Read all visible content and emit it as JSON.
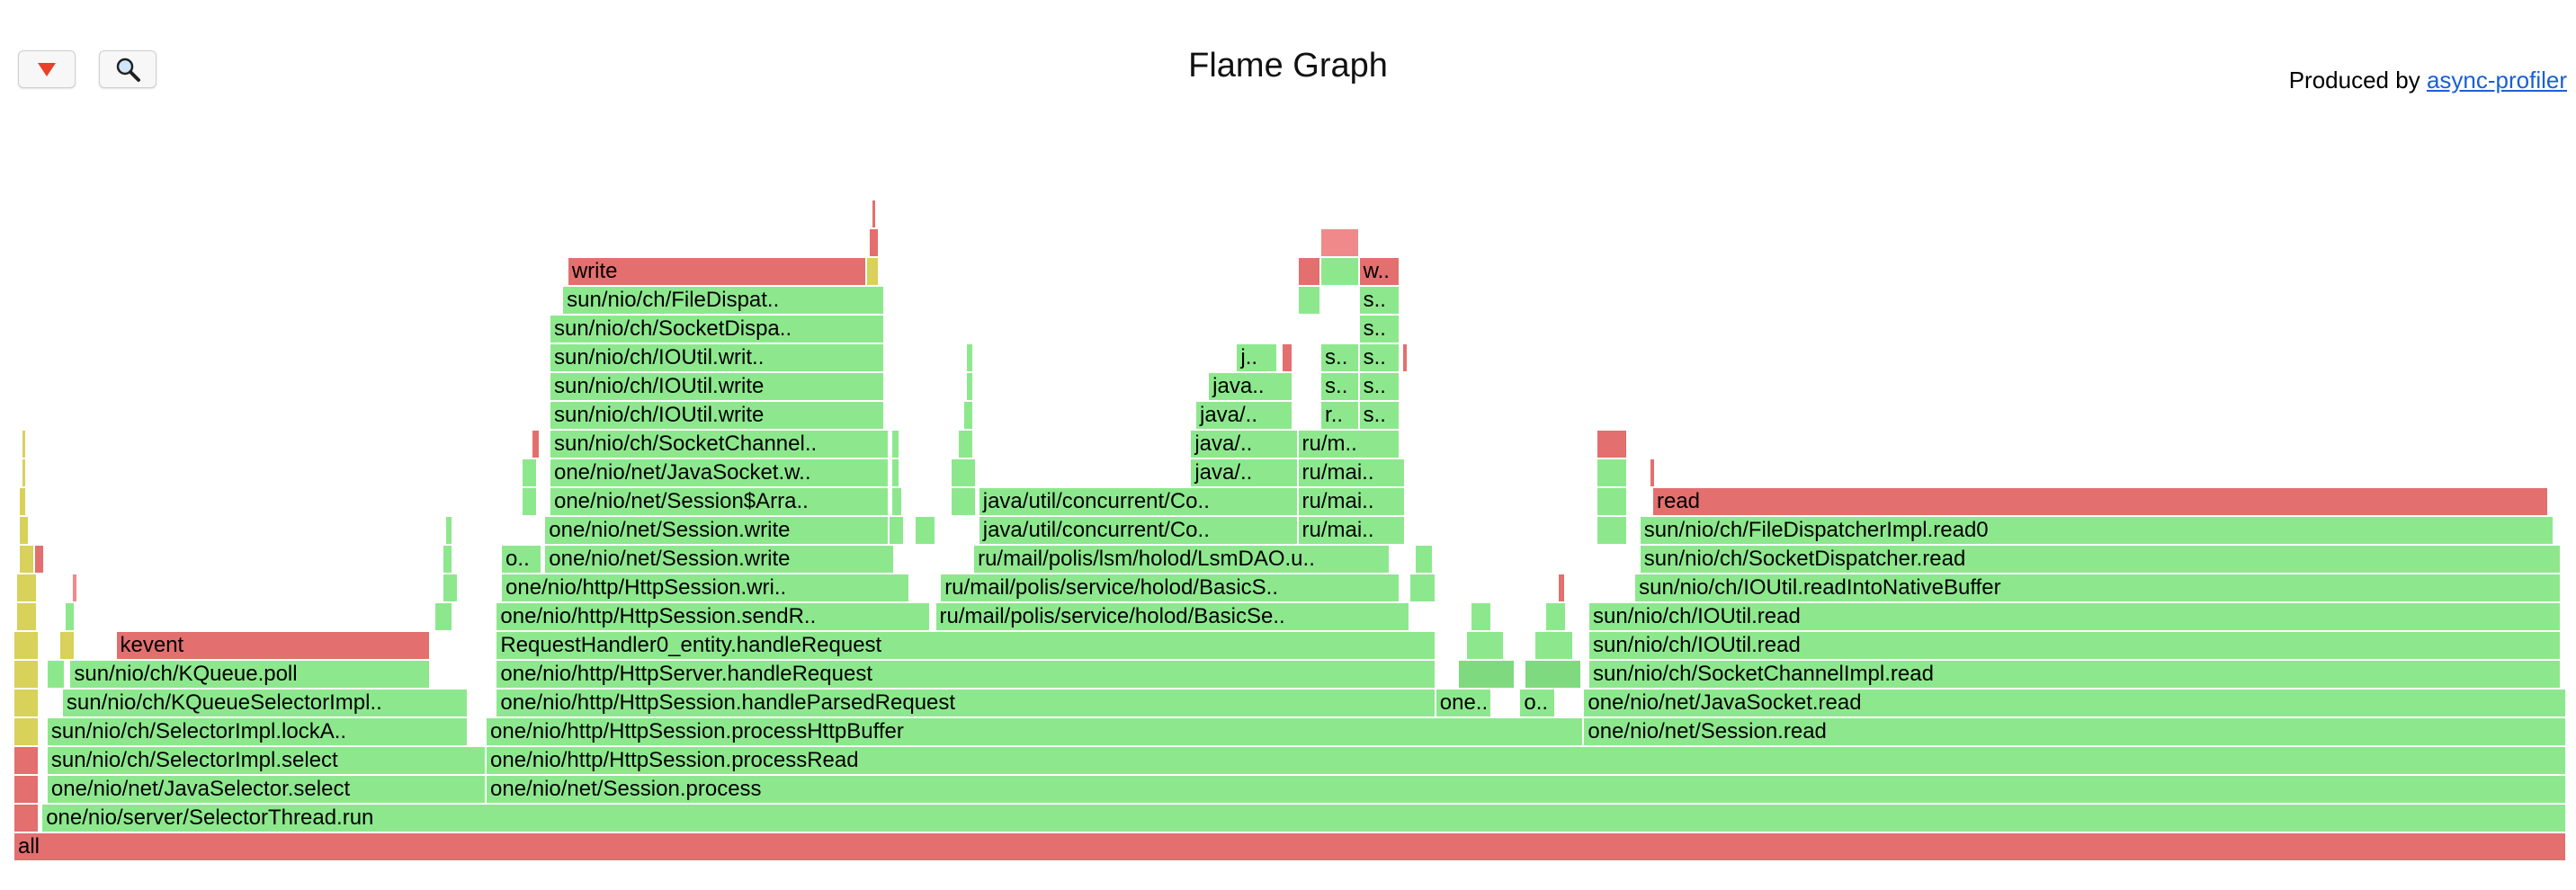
{
  "toolbar": {
    "reverse_icon": "red-triangle-down-icon",
    "search_icon": "magnifier-icon"
  },
  "header": {
    "title": "Flame Graph",
    "produced_by": "Produced by",
    "profiler_link": "async-profiler"
  },
  "colors": {
    "red": "#e36f6f",
    "green": "#8de88d",
    "green_dark": "#7fd97f",
    "yellow": "#d8d15a",
    "pink": "#f08a8a"
  },
  "frames": [
    {
      "label": "all",
      "level": 0,
      "start": 0.0,
      "width": 1.0,
      "color": "red"
    },
    {
      "label": "one/nio/server/SelectorThread.run",
      "level": 1,
      "start": 0.011,
      "width": 0.989,
      "color": "green"
    },
    {
      "label": "one/nio/net/JavaSelector.select",
      "level": 2,
      "start": 0.013,
      "width": 0.172,
      "color": "green"
    },
    {
      "label": "sun/nio/ch/SelectorImpl.select",
      "level": 3,
      "start": 0.013,
      "width": 0.172,
      "color": "green"
    },
    {
      "label": "sun/nio/ch/SelectorImpl.lockA..",
      "level": 4,
      "start": 0.013,
      "width": 0.165,
      "color": "green"
    },
    {
      "label": "sun/nio/ch/KQueueSelectorImpl..",
      "level": 5,
      "start": 0.019,
      "width": 0.159,
      "color": "green"
    },
    {
      "label": "sun/nio/ch/KQueue.poll",
      "level": 6,
      "start": 0.022,
      "width": 0.141,
      "color": "green"
    },
    {
      "label": "kevent",
      "level": 7,
      "start": 0.04,
      "width": 0.123,
      "color": "red"
    },
    {
      "label": "one/nio/net/Session.process",
      "level": 2,
      "start": 0.185,
      "width": 0.815,
      "color": "green"
    },
    {
      "label": "one/nio/http/HttpSession.processRead",
      "level": 3,
      "start": 0.185,
      "width": 0.815,
      "color": "green"
    },
    {
      "label": "one/nio/http/HttpSession.processHttpBuffer",
      "level": 4,
      "start": 0.185,
      "width": 0.43,
      "color": "green"
    },
    {
      "label": "one/nio/http/HttpSession.handleParsedRequest",
      "level": 5,
      "start": 0.189,
      "width": 0.368,
      "color": "green"
    },
    {
      "label": "one/nio/http/HttpServer.handleRequest",
      "level": 6,
      "start": 0.189,
      "width": 0.368,
      "color": "green"
    },
    {
      "label": "RequestHandler0_entity.handleRequest",
      "level": 7,
      "start": 0.189,
      "width": 0.368,
      "color": "green"
    },
    {
      "label": "one/nio/http/HttpSession.sendR..",
      "level": 8,
      "start": 0.189,
      "width": 0.17,
      "color": "green"
    },
    {
      "label": "one/nio/http/HttpSession.wri..",
      "level": 9,
      "start": 0.191,
      "width": 0.16,
      "color": "green"
    },
    {
      "label": "o..",
      "level": 10,
      "start": 0.191,
      "width": 0.016,
      "color": "green"
    },
    {
      "label": "one/nio/net/Session.write",
      "level": 10,
      "start": 0.208,
      "width": 0.137,
      "color": "green"
    },
    {
      "label": "one/nio/net/Session.write",
      "level": 11,
      "start": 0.208,
      "width": 0.135,
      "color": "green"
    },
    {
      "label": "one/nio/net/Session$Arra..",
      "level": 12,
      "start": 0.21,
      "width": 0.133,
      "color": "green"
    },
    {
      "label": "one/nio/net/JavaSocket.w..",
      "level": 13,
      "start": 0.21,
      "width": 0.133,
      "color": "green"
    },
    {
      "label": "sun/nio/ch/SocketChannel..",
      "level": 14,
      "start": 0.21,
      "width": 0.133,
      "color": "green"
    },
    {
      "label": "sun/nio/ch/IOUtil.write",
      "level": 15,
      "start": 0.21,
      "width": 0.131,
      "color": "green"
    },
    {
      "label": "sun/nio/ch/IOUtil.write",
      "level": 16,
      "start": 0.21,
      "width": 0.131,
      "color": "green"
    },
    {
      "label": "sun/nio/ch/IOUtil.writ..",
      "level": 17,
      "start": 0.21,
      "width": 0.131,
      "color": "green"
    },
    {
      "label": "sun/nio/ch/SocketDispa..",
      "level": 18,
      "start": 0.21,
      "width": 0.131,
      "color": "green"
    },
    {
      "label": "sun/nio/ch/FileDispat..",
      "level": 19,
      "start": 0.215,
      "width": 0.126,
      "color": "green"
    },
    {
      "label": "write",
      "level": 20,
      "start": 0.217,
      "width": 0.117,
      "color": "red"
    },
    {
      "label": "ru/mail/polis/service/holod/BasicSe..",
      "level": 8,
      "start": 0.361,
      "width": 0.186,
      "color": "green"
    },
    {
      "label": "ru/mail/polis/service/holod/BasicS..",
      "level": 9,
      "start": 0.363,
      "width": 0.18,
      "color": "green"
    },
    {
      "label": "ru/mail/polis/lsm/holod/LsmDAO.u..",
      "level": 10,
      "start": 0.376,
      "width": 0.163,
      "color": "green"
    },
    {
      "label": "java/util/concurrent/Co..",
      "level": 11,
      "start": 0.378,
      "width": 0.125,
      "color": "green"
    },
    {
      "label": "java/util/concurrent/Co..",
      "level": 12,
      "start": 0.378,
      "width": 0.125,
      "color": "green"
    },
    {
      "label": "java/..",
      "level": 13,
      "start": 0.461,
      "width": 0.042,
      "color": "green"
    },
    {
      "label": "java/..",
      "level": 14,
      "start": 0.461,
      "width": 0.042,
      "color": "green"
    },
    {
      "label": "java/..",
      "level": 15,
      "start": 0.463,
      "width": 0.038,
      "color": "green"
    },
    {
      "label": "java..",
      "level": 16,
      "start": 0.468,
      "width": 0.033,
      "color": "green"
    },
    {
      "label": "j..",
      "level": 17,
      "start": 0.479,
      "width": 0.016,
      "color": "green"
    },
    {
      "label": "ru/mai..",
      "level": 12,
      "start": 0.503,
      "width": 0.042,
      "color": "green"
    },
    {
      "label": "ru/mai..",
      "level": 13,
      "start": 0.503,
      "width": 0.042,
      "color": "green"
    },
    {
      "label": "ru/mai..",
      "level": 11,
      "start": 0.503,
      "width": 0.042,
      "color": "green"
    },
    {
      "label": "ru/m..",
      "level": 14,
      "start": 0.503,
      "width": 0.04,
      "color": "green"
    },
    {
      "label": "r..",
      "level": 15,
      "start": 0.512,
      "width": 0.015,
      "color": "green"
    },
    {
      "label": "s..",
      "level": 16,
      "start": 0.512,
      "width": 0.015,
      "color": "green"
    },
    {
      "label": "s..",
      "level": 17,
      "start": 0.512,
      "width": 0.015,
      "color": "green"
    },
    {
      "label": "s..",
      "level": 15,
      "start": 0.527,
      "width": 0.016,
      "color": "green"
    },
    {
      "label": "s..",
      "level": 16,
      "start": 0.527,
      "width": 0.016,
      "color": "green"
    },
    {
      "label": "s..",
      "level": 17,
      "start": 0.527,
      "width": 0.016,
      "color": "green"
    },
    {
      "label": "s..",
      "level": 18,
      "start": 0.527,
      "width": 0.016,
      "color": "green"
    },
    {
      "label": "s..",
      "level": 19,
      "start": 0.527,
      "width": 0.016,
      "color": "green"
    },
    {
      "label": "w..",
      "level": 20,
      "start": 0.527,
      "width": 0.016,
      "color": "red"
    },
    {
      "label": "one..",
      "level": 5,
      "start": 0.557,
      "width": 0.022,
      "color": "green"
    },
    {
      "label": "o..",
      "level": 5,
      "start": 0.59,
      "width": 0.014,
      "color": "green"
    },
    {
      "label": "one/nio/net/Session.read",
      "level": 4,
      "start": 0.615,
      "width": 0.385,
      "color": "green"
    },
    {
      "label": "one/nio/net/JavaSocket.read",
      "level": 5,
      "start": 0.615,
      "width": 0.385,
      "color": "green"
    },
    {
      "label": "sun/nio/ch/SocketChannelImpl.read",
      "level": 6,
      "start": 0.617,
      "width": 0.381,
      "color": "green"
    },
    {
      "label": "sun/nio/ch/IOUtil.read",
      "level": 7,
      "start": 0.617,
      "width": 0.381,
      "color": "green"
    },
    {
      "label": "sun/nio/ch/IOUtil.read",
      "level": 8,
      "start": 0.617,
      "width": 0.381,
      "color": "green"
    },
    {
      "label": "sun/nio/ch/IOUtil.readIntoNativeBuffer",
      "level": 9,
      "start": 0.635,
      "width": 0.363,
      "color": "green"
    },
    {
      "label": "sun/nio/ch/SocketDispatcher.read",
      "level": 10,
      "start": 0.637,
      "width": 0.361,
      "color": "green"
    },
    {
      "label": "sun/nio/ch/FileDispatcherImpl.read0",
      "level": 11,
      "start": 0.637,
      "width": 0.358,
      "color": "green"
    },
    {
      "label": "read",
      "level": 12,
      "start": 0.642,
      "width": 0.351,
      "color": "red"
    },
    {
      "label": "",
      "level": 1,
      "start": 0.0,
      "width": 0.01,
      "color": "red"
    },
    {
      "label": "",
      "level": 2,
      "start": 0.0,
      "width": 0.01,
      "color": "red"
    },
    {
      "label": "",
      "level": 3,
      "start": 0.0,
      "width": 0.01,
      "color": "red"
    },
    {
      "label": "",
      "level": 4,
      "start": 0.0,
      "width": 0.01,
      "color": "yellow"
    },
    {
      "label": "",
      "level": 5,
      "start": 0.0,
      "width": 0.01,
      "color": "yellow"
    },
    {
      "label": "",
      "level": 6,
      "start": 0.0,
      "width": 0.01,
      "color": "yellow"
    },
    {
      "label": "",
      "level": 7,
      "start": 0.0,
      "width": 0.01,
      "color": "yellow"
    },
    {
      "label": "",
      "level": 8,
      "start": 0.001,
      "width": 0.008,
      "color": "yellow"
    },
    {
      "label": "",
      "level": 9,
      "start": 0.001,
      "width": 0.008,
      "color": "yellow"
    },
    {
      "label": "",
      "level": 10,
      "start": 0.002,
      "width": 0.006,
      "color": "yellow"
    },
    {
      "label": "",
      "level": 11,
      "start": 0.002,
      "width": 0.004,
      "color": "yellow"
    },
    {
      "label": "",
      "level": 12,
      "start": 0.002,
      "width": 0.003,
      "color": "yellow"
    },
    {
      "label": "",
      "level": 13,
      "start": 0.003,
      "width": 0.002,
      "color": "yellow"
    },
    {
      "label": "",
      "level": 14,
      "start": 0.003,
      "width": 0.002,
      "color": "yellow"
    },
    {
      "label": "",
      "level": 6,
      "start": 0.013,
      "width": 0.007,
      "color": "green"
    },
    {
      "label": "",
      "level": 7,
      "start": 0.018,
      "width": 0.006,
      "color": "yellow"
    },
    {
      "label": "",
      "level": 8,
      "start": 0.02,
      "width": 0.004,
      "color": "green"
    },
    {
      "label": "",
      "level": 9,
      "start": 0.023,
      "width": 0.002,
      "color": "pink"
    },
    {
      "label": "",
      "level": 10,
      "start": 0.008,
      "width": 0.004,
      "color": "red"
    },
    {
      "label": "",
      "level": 8,
      "start": 0.165,
      "width": 0.007,
      "color": "green"
    },
    {
      "label": "",
      "level": 9,
      "start": 0.168,
      "width": 0.006,
      "color": "green"
    },
    {
      "label": "",
      "level": 10,
      "start": 0.168,
      "width": 0.004,
      "color": "green"
    },
    {
      "label": "",
      "level": 11,
      "start": 0.169,
      "width": 0.003,
      "color": "green"
    },
    {
      "label": "",
      "level": 12,
      "start": 0.199,
      "width": 0.006,
      "color": "green"
    },
    {
      "label": "",
      "level": 13,
      "start": 0.199,
      "width": 0.006,
      "color": "green"
    },
    {
      "label": "",
      "level": 14,
      "start": 0.203,
      "width": 0.003,
      "color": "red"
    },
    {
      "label": "",
      "level": 11,
      "start": 0.343,
      "width": 0.006,
      "color": "green"
    },
    {
      "label": "",
      "level": 12,
      "start": 0.344,
      "width": 0.004,
      "color": "green"
    },
    {
      "label": "",
      "level": 13,
      "start": 0.344,
      "width": 0.003,
      "color": "green"
    },
    {
      "label": "",
      "level": 14,
      "start": 0.344,
      "width": 0.003,
      "color": "green"
    },
    {
      "label": "",
      "level": 20,
      "start": 0.334,
      "width": 0.005,
      "color": "yellow"
    },
    {
      "label": "",
      "level": 21,
      "start": 0.335,
      "width": 0.004,
      "color": "red"
    },
    {
      "label": "",
      "level": 22,
      "start": 0.336,
      "width": 0.002,
      "color": "red"
    },
    {
      "label": "",
      "level": 11,
      "start": 0.353,
      "width": 0.008,
      "color": "green"
    },
    {
      "label": "",
      "level": 12,
      "start": 0.367,
      "width": 0.01,
      "color": "green"
    },
    {
      "label": "",
      "level": 13,
      "start": 0.367,
      "width": 0.01,
      "color": "green"
    },
    {
      "label": "",
      "level": 14,
      "start": 0.37,
      "width": 0.006,
      "color": "green"
    },
    {
      "label": "",
      "level": 15,
      "start": 0.372,
      "width": 0.004,
      "color": "green"
    },
    {
      "label": "",
      "level": 16,
      "start": 0.373,
      "width": 0.003,
      "color": "green"
    },
    {
      "label": "",
      "level": 17,
      "start": 0.373,
      "width": 0.003,
      "color": "green"
    },
    {
      "label": "",
      "level": 17,
      "start": 0.497,
      "width": 0.004,
      "color": "red"
    },
    {
      "label": "",
      "level": 17,
      "start": 0.544,
      "width": 0.002,
      "color": "red"
    },
    {
      "label": "",
      "level": 20,
      "start": 0.503,
      "width": 0.009,
      "color": "red"
    },
    {
      "label": "",
      "level": 19,
      "start": 0.503,
      "width": 0.009,
      "color": "green"
    },
    {
      "label": "",
      "level": 20,
      "start": 0.512,
      "width": 0.015,
      "color": "green"
    },
    {
      "label": "",
      "level": 21,
      "start": 0.512,
      "width": 0.015,
      "color": "pink"
    },
    {
      "label": "",
      "level": 9,
      "start": 0.547,
      "width": 0.01,
      "color": "green"
    },
    {
      "label": "",
      "level": 10,
      "start": 0.549,
      "width": 0.007,
      "color": "green"
    },
    {
      "label": "",
      "level": 6,
      "start": 0.566,
      "width": 0.022,
      "color": "green_dark"
    },
    {
      "label": "",
      "level": 7,
      "start": 0.569,
      "width": 0.015,
      "color": "green"
    },
    {
      "label": "",
      "level": 8,
      "start": 0.571,
      "width": 0.008,
      "color": "green"
    },
    {
      "label": "",
      "level": 6,
      "start": 0.592,
      "width": 0.022,
      "color": "green_dark"
    },
    {
      "label": "",
      "level": 7,
      "start": 0.596,
      "width": 0.015,
      "color": "green"
    },
    {
      "label": "",
      "level": 8,
      "start": 0.6,
      "width": 0.008,
      "color": "green"
    },
    {
      "label": "",
      "level": 9,
      "start": 0.605,
      "width": 0.003,
      "color": "red"
    },
    {
      "label": "",
      "level": 11,
      "start": 0.62,
      "width": 0.012,
      "color": "green"
    },
    {
      "label": "",
      "level": 12,
      "start": 0.62,
      "width": 0.012,
      "color": "green"
    },
    {
      "label": "",
      "level": 13,
      "start": 0.62,
      "width": 0.012,
      "color": "green"
    },
    {
      "label": "",
      "level": 14,
      "start": 0.62,
      "width": 0.012,
      "color": "red"
    },
    {
      "label": "",
      "level": 13,
      "start": 0.641,
      "width": 0.002,
      "color": "red"
    }
  ]
}
